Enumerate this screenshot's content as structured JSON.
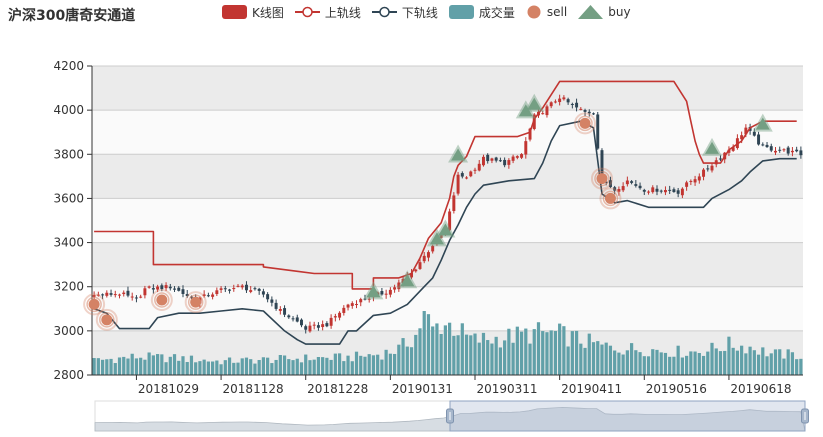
{
  "title": "沪深300唐奇安通道",
  "legend": [
    {
      "key": "kline",
      "label": "K线图",
      "color": "#c23531"
    },
    {
      "key": "upper",
      "label": "上轨线",
      "color": "#c23531"
    },
    {
      "key": "lower",
      "label": "下轨线",
      "color": "#2f4554"
    },
    {
      "key": "volume",
      "label": "成交量",
      "color": "#61a0a8"
    },
    {
      "key": "sell",
      "label": "sell",
      "color": "#d48265"
    },
    {
      "key": "buy",
      "label": "buy",
      "color": "#749f83"
    }
  ],
  "chart_data": {
    "type": "candlestick",
    "title": "沪深300唐奇安通道",
    "ylim": [
      2800,
      4200
    ],
    "y_ticks": [
      2800,
      3000,
      3200,
      3400,
      3600,
      3800,
      4000,
      4200
    ],
    "x_tick_labels": [
      "20181029",
      "20181128",
      "20181228",
      "20190131",
      "20190311",
      "20190411",
      "20190516",
      "20190618"
    ],
    "x_tick_positions": [
      10,
      30,
      50,
      70,
      90,
      110,
      130,
      150
    ],
    "n_days": 168,
    "colors": {
      "up": "#c23531",
      "down": "#2f4554",
      "upper": "#c23531",
      "lower": "#2f4554",
      "volume": "#61a0a8",
      "sell": "#d48265",
      "buy": "#749f83"
    },
    "close_keypoints": [
      [
        0,
        3160
      ],
      [
        6,
        3170
      ],
      [
        10,
        3140
      ],
      [
        12,
        3190
      ],
      [
        18,
        3200
      ],
      [
        24,
        3140
      ],
      [
        30,
        3185
      ],
      [
        35,
        3200
      ],
      [
        40,
        3165
      ],
      [
        44,
        3090
      ],
      [
        48,
        3040
      ],
      [
        50,
        3010
      ],
      [
        55,
        3030
      ],
      [
        60,
        3120
      ],
      [
        64,
        3145
      ],
      [
        68,
        3170
      ],
      [
        70,
        3185
      ],
      [
        75,
        3260
      ],
      [
        80,
        3390
      ],
      [
        83,
        3450
      ],
      [
        86,
        3700
      ],
      [
        88,
        3700
      ],
      [
        92,
        3780
      ],
      [
        97,
        3760
      ],
      [
        101,
        3800
      ],
      [
        104,
        3970
      ],
      [
        107,
        4010
      ],
      [
        110,
        4060
      ],
      [
        113,
        4020
      ],
      [
        116,
        3990
      ],
      [
        118,
        3990
      ],
      [
        120,
        3680
      ],
      [
        123,
        3640
      ],
      [
        126,
        3680
      ],
      [
        130,
        3640
      ],
      [
        134,
        3640
      ],
      [
        138,
        3630
      ],
      [
        141,
        3680
      ],
      [
        144,
        3720
      ],
      [
        148,
        3790
      ],
      [
        151,
        3840
      ],
      [
        154,
        3920
      ],
      [
        158,
        3830
      ],
      [
        162,
        3820
      ],
      [
        167,
        3800
      ]
    ],
    "volume_keypoints": [
      [
        0,
        95
      ],
      [
        10,
        120
      ],
      [
        20,
        110
      ],
      [
        30,
        90
      ],
      [
        40,
        100
      ],
      [
        50,
        110
      ],
      [
        60,
        115
      ],
      [
        68,
        140
      ],
      [
        72,
        170
      ],
      [
        76,
        260
      ],
      [
        78,
        400
      ],
      [
        80,
        300
      ],
      [
        82,
        340
      ],
      [
        84,
        330
      ],
      [
        86,
        300
      ],
      [
        88,
        250
      ],
      [
        90,
        230
      ],
      [
        95,
        240
      ],
      [
        100,
        260
      ],
      [
        105,
        280
      ],
      [
        110,
        270
      ],
      [
        115,
        230
      ],
      [
        120,
        190
      ],
      [
        125,
        175
      ],
      [
        130,
        170
      ],
      [
        135,
        160
      ],
      [
        140,
        150
      ],
      [
        145,
        165
      ],
      [
        150,
        200
      ],
      [
        155,
        185
      ],
      [
        160,
        140
      ],
      [
        167,
        130
      ]
    ],
    "upper_channel": [
      [
        0,
        3450
      ],
      [
        14,
        3450
      ],
      [
        14,
        3300
      ],
      [
        40,
        3300
      ],
      [
        40,
        3290
      ],
      [
        48,
        3270
      ],
      [
        52,
        3260
      ],
      [
        61,
        3260
      ],
      [
        61,
        3190
      ],
      [
        66,
        3190
      ],
      [
        66,
        3240
      ],
      [
        72,
        3240
      ],
      [
        75,
        3260
      ],
      [
        77,
        3330
      ],
      [
        79,
        3420
      ],
      [
        82,
        3490
      ],
      [
        84,
        3600
      ],
      [
        85,
        3700
      ],
      [
        86,
        3750
      ],
      [
        88,
        3790
      ],
      [
        90,
        3880
      ],
      [
        100,
        3880
      ],
      [
        103,
        3900
      ],
      [
        104,
        3960
      ],
      [
        106,
        4010
      ],
      [
        108,
        4070
      ],
      [
        110,
        4130
      ],
      [
        124,
        4130
      ],
      [
        137,
        4130
      ],
      [
        140,
        4040
      ],
      [
        141,
        3950
      ],
      [
        142,
        3860
      ],
      [
        143,
        3800
      ],
      [
        144,
        3760
      ],
      [
        148,
        3760
      ],
      [
        150,
        3820
      ],
      [
        153,
        3860
      ],
      [
        155,
        3920
      ],
      [
        158,
        3950
      ],
      [
        166,
        3950
      ]
    ],
    "lower_channel": [
      [
        0,
        3100
      ],
      [
        3,
        3080
      ],
      [
        6,
        3010
      ],
      [
        13,
        3010
      ],
      [
        15,
        3060
      ],
      [
        20,
        3080
      ],
      [
        25,
        3080
      ],
      [
        30,
        3090
      ],
      [
        35,
        3100
      ],
      [
        40,
        3090
      ],
      [
        45,
        3000
      ],
      [
        48,
        2960
      ],
      [
        50,
        2940
      ],
      [
        58,
        2940
      ],
      [
        60,
        3000
      ],
      [
        62,
        3000
      ],
      [
        66,
        3070
      ],
      [
        70,
        3080
      ],
      [
        74,
        3120
      ],
      [
        78,
        3200
      ],
      [
        80,
        3240
      ],
      [
        82,
        3320
      ],
      [
        84,
        3410
      ],
      [
        86,
        3480
      ],
      [
        88,
        3560
      ],
      [
        90,
        3620
      ],
      [
        92,
        3660
      ],
      [
        98,
        3680
      ],
      [
        104,
        3690
      ],
      [
        106,
        3760
      ],
      [
        108,
        3860
      ],
      [
        110,
        3930
      ],
      [
        115,
        3950
      ],
      [
        118,
        3920
      ],
      [
        120,
        3620
      ],
      [
        123,
        3580
      ],
      [
        126,
        3590
      ],
      [
        131,
        3560
      ],
      [
        144,
        3560
      ],
      [
        146,
        3600
      ],
      [
        150,
        3640
      ],
      [
        153,
        3680
      ],
      [
        155,
        3720
      ],
      [
        158,
        3770
      ],
      [
        162,
        3780
      ],
      [
        166,
        3780
      ]
    ],
    "sell_points": [
      [
        0,
        3120
      ],
      [
        3,
        3050
      ],
      [
        16,
        3140
      ],
      [
        24,
        3130
      ],
      [
        116,
        3940
      ],
      [
        120,
        3690
      ],
      [
        122,
        3600
      ]
    ],
    "buy_points": [
      [
        66,
        3170
      ],
      [
        74,
        3220
      ],
      [
        81,
        3410
      ],
      [
        83,
        3450
      ],
      [
        86,
        3790
      ],
      [
        102,
        3990
      ],
      [
        104,
        4020
      ],
      [
        146,
        3820
      ],
      [
        158,
        3930
      ]
    ],
    "datazoom": {
      "start": 0.5,
      "end": 1.0
    }
  }
}
